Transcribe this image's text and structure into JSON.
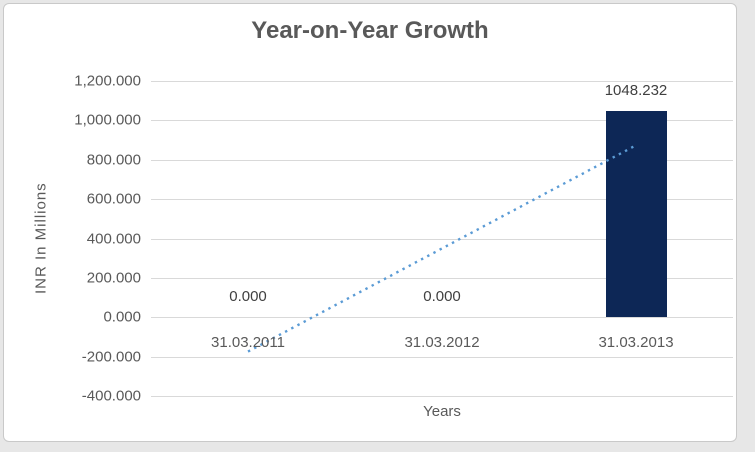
{
  "frame": {
    "background": "#e7e7e7"
  },
  "chart_data": {
    "type": "bar",
    "title": "Year-on-Year Growth",
    "xlabel": "Years",
    "ylabel": "INR In Millions",
    "categories": [
      "31.03.2011",
      "31.03.2012",
      "31.03.2013"
    ],
    "series": [
      {
        "name": "INR In Millions",
        "values": [
          0,
          0,
          1048.232
        ]
      }
    ],
    "data_labels": [
      "0.000",
      "0.000",
      "1048.232"
    ],
    "ylim": [
      -400,
      1200
    ],
    "ytick_step": 200,
    "yticks": [
      {
        "value": 1200,
        "label": "1,200.000"
      },
      {
        "value": 1000,
        "label": "1,000.000"
      },
      {
        "value": 800,
        "label": "800.000"
      },
      {
        "value": 600,
        "label": "600.000"
      },
      {
        "value": 400,
        "label": "400.000"
      },
      {
        "value": 200,
        "label": "200.000"
      },
      {
        "value": 0,
        "label": "0.000"
      },
      {
        "value": -200,
        "label": "-200.000"
      },
      {
        "value": -400,
        "label": "-400.000"
      }
    ],
    "grid": true,
    "legend": false,
    "trendline": {
      "type": "linear",
      "dotted": true,
      "x_start_index": 0,
      "y_start": -174.705,
      "x_end_index": 2,
      "y_end": 873.527
    },
    "colors": {
      "bar": "#0d2756",
      "trendline": "#5b9bd5",
      "gridline": "#d9d9d9",
      "axis_text": "#595959",
      "data_label": "#404040",
      "chart_background": "#ffffff",
      "chart_border": "#c9c9c9",
      "frame_background": "#e7e7e7"
    }
  }
}
